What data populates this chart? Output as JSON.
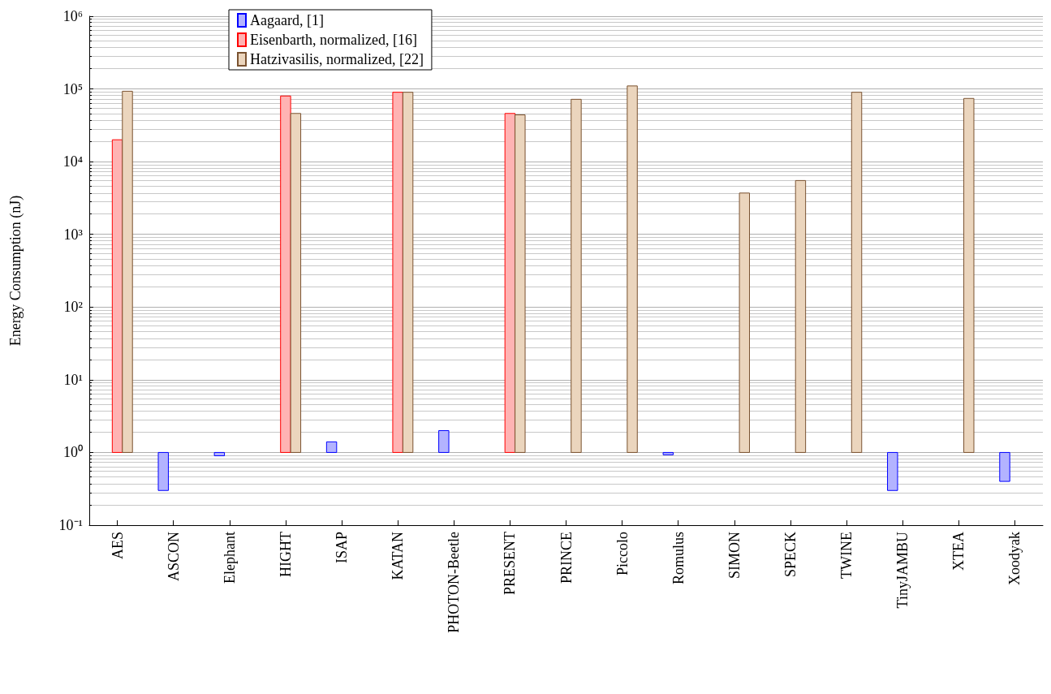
{
  "chart_data": {
    "type": "bar",
    "ylabel": "Energy Consumption (nJ)",
    "categories": [
      "AES",
      "ASCON",
      "Elephant",
      "HIGHT",
      "ISAP",
      "KATAN",
      "PHOTON-Beetle",
      "PRESENT",
      "PRINCE",
      "Piccolo",
      "Romulus",
      "SIMON",
      "SPECK",
      "TWINE",
      "TinyJAMBU",
      "XTEA",
      "Xoodyak"
    ],
    "series": [
      {
        "name": "Aagaard, [1]",
        "color": "#b3b3ff",
        "base": [
          null,
          1,
          1,
          null,
          1,
          null,
          1,
          null,
          null,
          null,
          1,
          null,
          null,
          null,
          1,
          null,
          1
        ],
        "values": [
          null,
          -0.7,
          -0.1,
          null,
          0.4,
          null,
          1,
          null,
          null,
          null,
          -0.07,
          null,
          null,
          null,
          -0.7,
          null,
          -0.6
        ]
      },
      {
        "name": "Eisenbarth, normalized, [16]",
        "color": "#ffb3b3",
        "base": [
          1,
          null,
          null,
          1,
          null,
          1,
          null,
          1,
          null,
          null,
          null,
          null,
          null,
          null,
          null,
          null,
          null
        ],
        "values": [
          19999,
          null,
          null,
          79999,
          null,
          89999,
          null,
          45999,
          null,
          null,
          null,
          null,
          null,
          null,
          null,
          null,
          null
        ]
      },
      {
        "name": "Hatzivasilis, normalized, [22]",
        "color": "#ebd5bd",
        "base": [
          1,
          null,
          null,
          1,
          null,
          1,
          null,
          1,
          1,
          1,
          null,
          1,
          1,
          1,
          null,
          1,
          null
        ],
        "values": [
          92999,
          null,
          null,
          45999,
          null,
          89999,
          null,
          43999,
          71999,
          109999,
          null,
          3699,
          5499,
          89999,
          null,
          73999,
          null
        ]
      }
    ],
    "log": "y",
    "ylim": [
      0.1,
      1000000
    ],
    "yticks": [
      {
        "value": 0.1,
        "label": "10⁻¹"
      },
      {
        "value": 1,
        "label": "10⁰"
      },
      {
        "value": 10,
        "label": "10¹"
      },
      {
        "value": 100,
        "label": "10²"
      },
      {
        "value": 1000,
        "label": "10³"
      },
      {
        "value": 10000,
        "label": "10⁴"
      },
      {
        "value": 100000,
        "label": "10⁵"
      },
      {
        "value": 1000000,
        "label": "10⁶"
      }
    ],
    "grid": "y",
    "legend": "top left"
  }
}
